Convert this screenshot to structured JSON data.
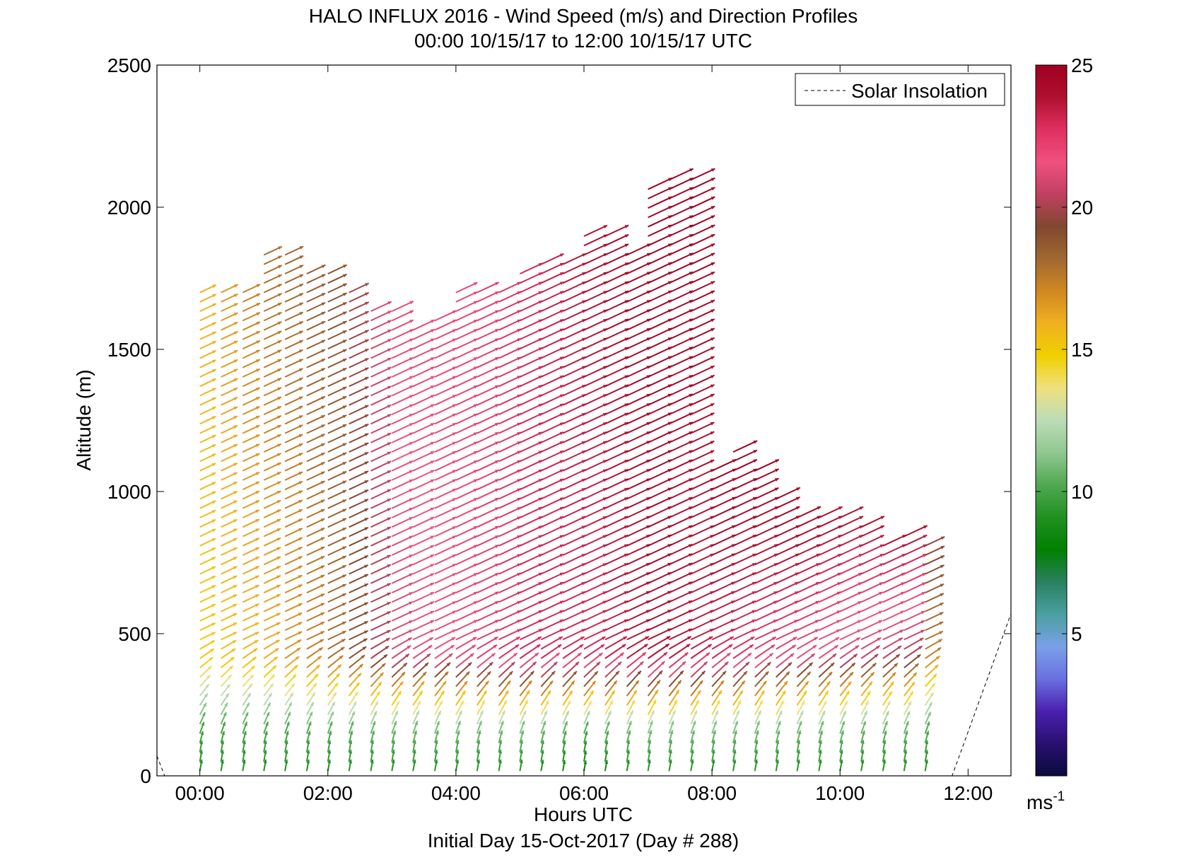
{
  "chart_data": {
    "type": "quiver",
    "title": "HALO INFLUX 2016 - Wind Speed (m/s) and Direction Profiles",
    "subtitle": "00:00 10/15/17 to 12:00 10/15/17  UTC",
    "xlabel": "Hours UTC",
    "footer": "Initial Day 15-Oct-2017 (Day # 288)",
    "ylabel": "Altitude (m)",
    "xlim": [
      -0.67,
      12.67
    ],
    "ylim": [
      0,
      2500
    ],
    "x_ticks": [
      0,
      2,
      4,
      6,
      8,
      10,
      12
    ],
    "x_tick_labels": [
      "00:00",
      "02:00",
      "04:00",
      "06:00",
      "08:00",
      "10:00",
      "12:00"
    ],
    "y_ticks": [
      0,
      500,
      1000,
      1500,
      2000,
      2500
    ],
    "y_tick_labels": [
      "0",
      "500",
      "1000",
      "1500",
      "2000",
      "2500"
    ],
    "legend": {
      "entries": [
        "Solar Insolation"
      ],
      "position": "top-right"
    },
    "colorbar": {
      "range": [
        0,
        25
      ],
      "ticks": [
        5,
        10,
        15,
        20,
        25
      ],
      "tick_labels": [
        "5",
        "10",
        "15",
        "20",
        "25"
      ],
      "unit_label": "ms",
      "unit_exponent": "-1",
      "colors": [
        "#0a0a3c",
        "#2a1070",
        "#4a20b0",
        "#6a70e0",
        "#7aa0e8",
        "#4aa0a0",
        "#2a8060",
        "#008000",
        "#209020",
        "#50a850",
        "#90c890",
        "#bcdcb8",
        "#f0e080",
        "#f0d000",
        "#f0b020",
        "#d08820",
        "#a06830",
        "#804830",
        "#c04060",
        "#f05080",
        "#e03060",
        "#b01030",
        "#a00020"
      ]
    },
    "series": [
      {
        "name": "Solar Insolation",
        "style": "dashed",
        "x": [
          -0.67,
          -0.55,
          11.75,
          12.67
        ],
        "y": [
          70,
          0,
          0,
          570
        ]
      }
    ],
    "profiles": {
      "times": [
        0,
        0.33,
        0.67,
        1.0,
        1.33,
        1.67,
        2.0,
        2.33,
        2.67,
        3.0,
        3.33,
        3.67,
        4.0,
        4.33,
        4.67,
        5.0,
        5.33,
        5.67,
        6.0,
        6.33,
        6.67,
        7.0,
        7.33,
        7.67,
        8.0,
        8.33,
        8.67,
        9.0,
        9.33,
        9.67,
        10.0,
        10.33,
        10.67,
        11.0,
        11.33
      ],
      "tops": [
        1720,
        1700,
        1700,
        1850,
        1850,
        1780,
        1780,
        1700,
        1640,
        1640,
        1590,
        1620,
        1720,
        1700,
        1720,
        1780,
        1800,
        1820,
        1900,
        1920,
        1860,
        2080,
        2100,
        2100,
        1090,
        1150,
        1100,
        990,
        940,
        930,
        910,
        880,
        830,
        850,
        810
      ],
      "altitude_step_m": 33,
      "low_level_direction_deg": 190,
      "upper_level_direction_deg": 245,
      "speed_profile_by_hour": {
        "hours": [
          0,
          1,
          2,
          3,
          4,
          5,
          6,
          7,
          8,
          9,
          10,
          11,
          11.6
        ],
        "near_surface_ms": [
          9,
          9,
          9,
          9,
          9,
          9,
          8,
          9,
          9,
          9,
          9,
          9,
          9
        ],
        "mid_level_ms": [
          15,
          16,
          18,
          21,
          22,
          23,
          23,
          24,
          23,
          22,
          21,
          20,
          15
        ],
        "top_level_ms": [
          16,
          18,
          19,
          22,
          22,
          23,
          24,
          25,
          25,
          25,
          24,
          24,
          16
        ]
      }
    }
  }
}
